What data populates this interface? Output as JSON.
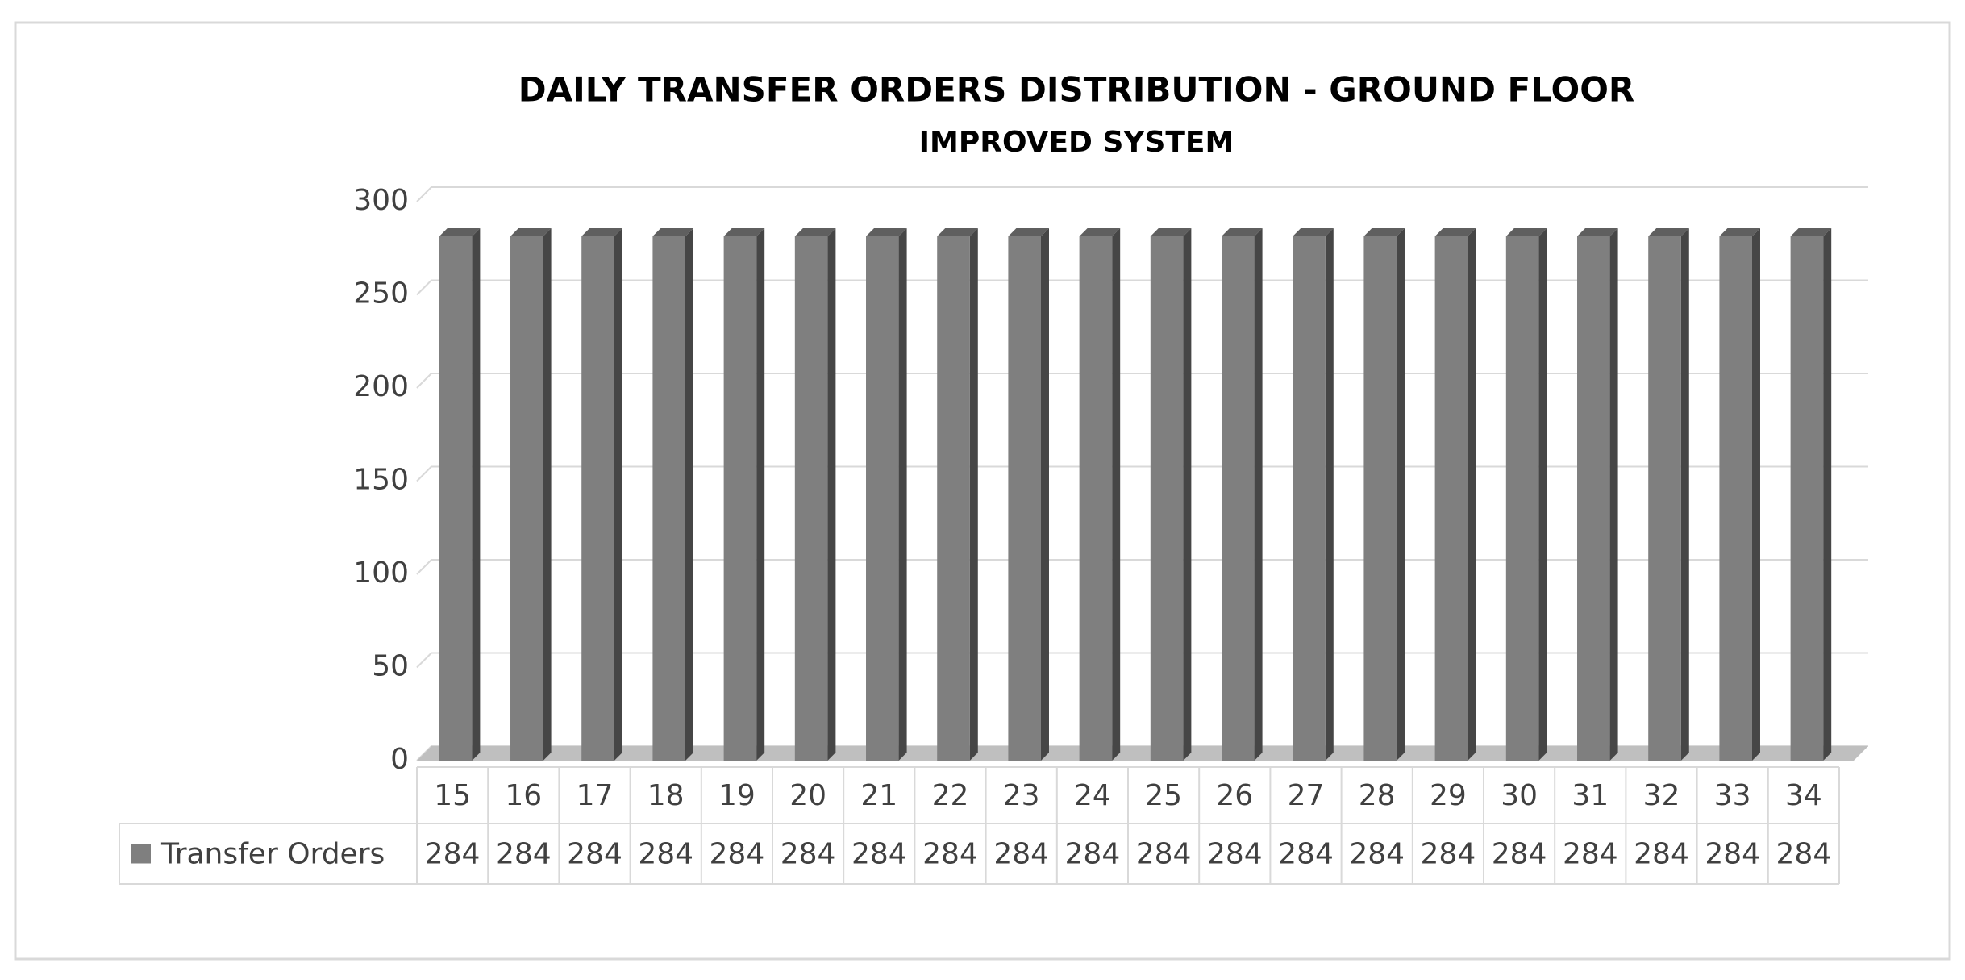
{
  "chart_data": {
    "type": "bar3d",
    "title": "DAILY TRANSFER ORDERS DISTRIBUTION - GROUND FLOOR",
    "subtitle": "IMPROVED SYSTEM",
    "categories": [
      "15",
      "16",
      "17",
      "18",
      "19",
      "20",
      "21",
      "22",
      "23",
      "24",
      "25",
      "26",
      "27",
      "28",
      "29",
      "30",
      "31",
      "32",
      "33",
      "34"
    ],
    "series": [
      {
        "name": "Transfer Orders",
        "color": "#7f7f7f",
        "values": [
          284,
          284,
          284,
          284,
          284,
          284,
          284,
          284,
          284,
          284,
          284,
          284,
          284,
          284,
          284,
          284,
          284,
          284,
          284,
          284
        ]
      }
    ],
    "ylim": [
      0,
      300
    ],
    "yticks": [
      0,
      50,
      100,
      150,
      200,
      250,
      300
    ],
    "grid": true,
    "data_table": true
  }
}
